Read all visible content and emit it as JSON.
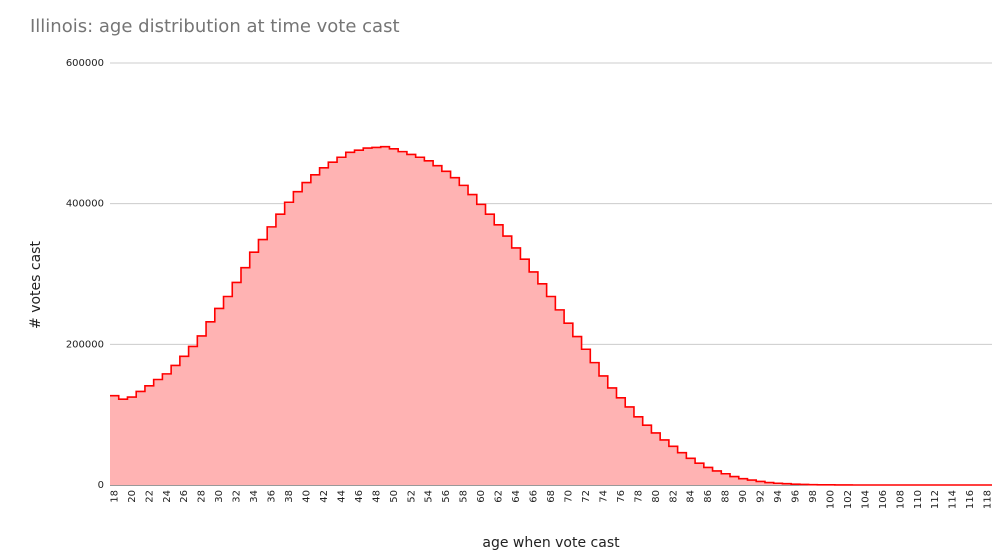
{
  "chart_data": {
    "type": "area",
    "title": "Illinois:  age distribution at time vote cast",
    "xlabel": "age when vote cast",
    "ylabel": "# votes cast",
    "ylim": [
      0,
      600000
    ],
    "yticks": [
      "0",
      "200000",
      "400000",
      "600000"
    ],
    "x": [
      18,
      19,
      20,
      21,
      22,
      23,
      24,
      25,
      26,
      27,
      28,
      29,
      30,
      31,
      32,
      33,
      34,
      35,
      36,
      37,
      38,
      39,
      40,
      41,
      42,
      43,
      44,
      45,
      46,
      47,
      48,
      49,
      50,
      51,
      52,
      53,
      54,
      55,
      56,
      57,
      58,
      59,
      60,
      61,
      62,
      63,
      64,
      65,
      66,
      67,
      68,
      69,
      70,
      71,
      72,
      73,
      74,
      75,
      76,
      77,
      78,
      79,
      80,
      81,
      82,
      83,
      84,
      85,
      86,
      87,
      88,
      89,
      90,
      91,
      92,
      93,
      94,
      95,
      96,
      97,
      98,
      99,
      100,
      101,
      102,
      103,
      104,
      105,
      106,
      107,
      108,
      109,
      110,
      111,
      112,
      113,
      114,
      115,
      116,
      117,
      118
    ],
    "xtick_labels": [
      "18",
      "20",
      "22",
      "24",
      "26",
      "28",
      "30",
      "32",
      "34",
      "36",
      "38",
      "40",
      "42",
      "44",
      "46",
      "48",
      "50",
      "52",
      "54",
      "56",
      "58",
      "60",
      "62",
      "64",
      "66",
      "68",
      "70",
      "72",
      "74",
      "76",
      "78",
      "80",
      "82",
      "84",
      "86",
      "88",
      "90",
      "92",
      "94",
      "96",
      "98",
      "100",
      "102",
      "104",
      "106",
      "108",
      "110",
      "112",
      "114",
      "116",
      "118"
    ],
    "series": [
      {
        "values": [
          127000,
          122000,
          125000,
          133000,
          141000,
          150000,
          158000,
          170000,
          183000,
          197000,
          212000,
          232000,
          251000,
          268000,
          288000,
          309000,
          331000,
          349000,
          367000,
          385000,
          402000,
          417000,
          430000,
          441000,
          451000,
          459000,
          466000,
          473000,
          476000,
          479000,
          480000,
          481000,
          478000,
          474000,
          470000,
          466000,
          461000,
          454000,
          446000,
          437000,
          426000,
          413000,
          399000,
          385000,
          370000,
          354000,
          337000,
          321000,
          303000,
          286000,
          268000,
          249000,
          230000,
          211000,
          193000,
          174000,
          155000,
          138000,
          124000,
          111000,
          97000,
          85000,
          74000,
          64000,
          55000,
          46000,
          38000,
          31000,
          25000,
          20000,
          16000,
          12000,
          9000,
          7000,
          5000,
          3500,
          2500,
          1800,
          1200,
          800,
          500,
          300,
          200,
          100,
          100,
          0,
          0,
          0,
          0,
          0,
          0,
          0,
          0,
          0,
          0,
          0,
          0,
          0,
          0,
          0,
          0
        ],
        "color": "#ff0000",
        "fill": "#ffb3b3"
      }
    ],
    "grid": true
  }
}
